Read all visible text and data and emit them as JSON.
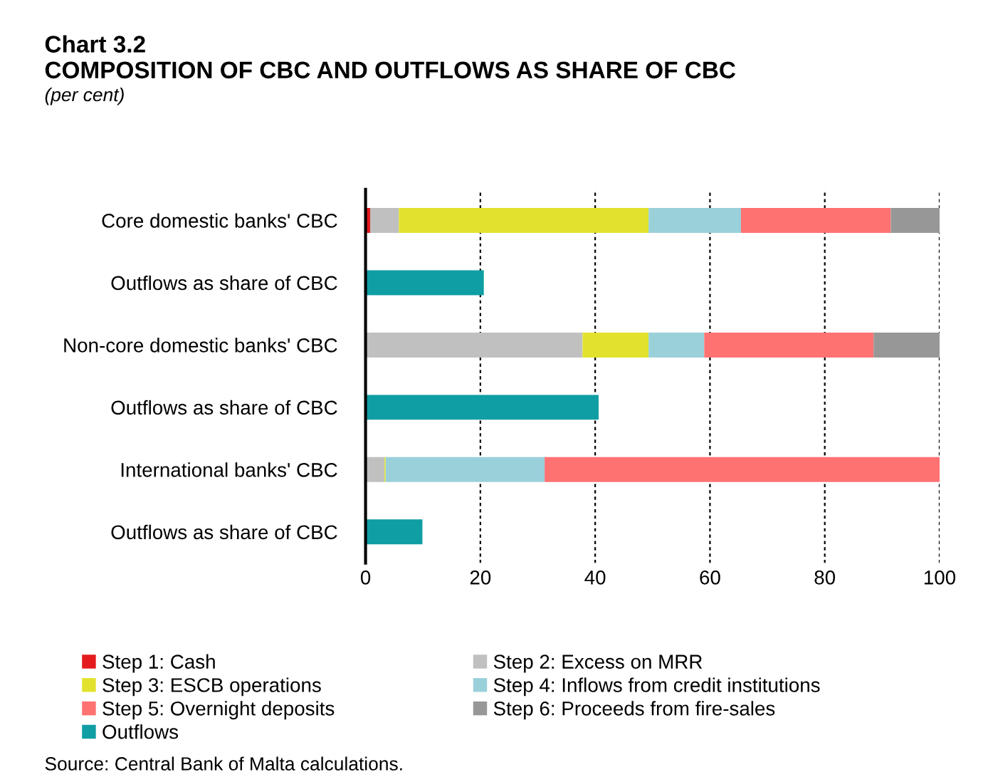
{
  "chart_data": {
    "type": "bar",
    "orientation": "horizontal",
    "stacked": true,
    "title": "Chart 3.2",
    "subtitle": "COMPOSITION OF CBC AND OUTFLOWS AS SHARE OF CBC",
    "annotations": [
      "(per cent)",
      "Source: Central Bank of Malta calculations."
    ],
    "categories": [
      "Core domestic banks' CBC",
      "Outflows as share of CBC",
      "Non-core domestic banks' CBC",
      "Outflows as share of CBC",
      "International banks' CBC",
      "Outflows as share of CBC"
    ],
    "series": [
      {
        "name": "Step 1: Cash",
        "color": "#e41a1c",
        "values": [
          0.8,
          null,
          0,
          null,
          0,
          null
        ]
      },
      {
        "name": "Step 2: Excess on MRR",
        "color": "#c0c0c0",
        "values": [
          5.0,
          null,
          37.8,
          null,
          3.3,
          null
        ]
      },
      {
        "name": "Step 3: ESCB operations",
        "color": "#e2e22e",
        "values": [
          43.5,
          null,
          11.5,
          null,
          0.2,
          null
        ]
      },
      {
        "name": "Step 4: Inflows from credit institutions",
        "color": "#9ad0da",
        "values": [
          16.1,
          null,
          9.7,
          null,
          27.7,
          null
        ]
      },
      {
        "name": "Step 5: Overnight deposits",
        "color": "#ff7272",
        "values": [
          26.1,
          null,
          29.5,
          null,
          68.8,
          null
        ]
      },
      {
        "name": "Step 6: Proceeds from fire-sales",
        "color": "#979797",
        "values": [
          8.5,
          null,
          11.5,
          null,
          0,
          null
        ]
      },
      {
        "name": "Outflows",
        "color": "#0f9ea4",
        "values": [
          null,
          20.6,
          null,
          40.6,
          null,
          9.9
        ]
      }
    ],
    "xlim": [
      0,
      100
    ],
    "xticks": [
      0,
      20,
      40,
      60,
      80,
      100
    ],
    "grid": "x",
    "legend": "bottom"
  }
}
